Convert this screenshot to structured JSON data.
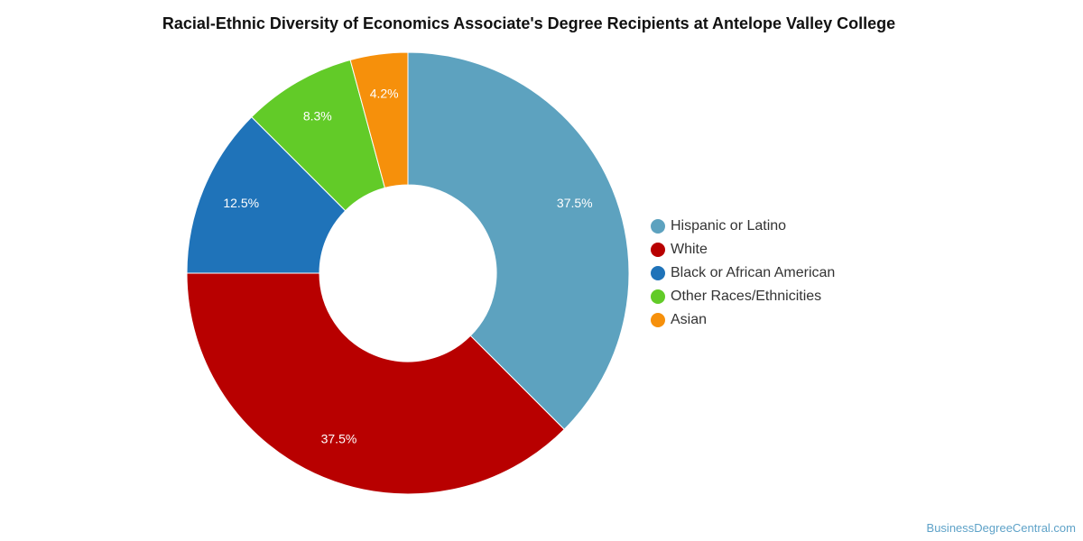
{
  "chart_data": {
    "type": "pie",
    "title": "Racial-Ethnic Diversity of Economics Associate's Degree Recipients at Antelope Valley College",
    "donut": true,
    "legend_position": "right",
    "slices": [
      {
        "name": "Hispanic or Latino",
        "value": 37.5,
        "label": "37.5%",
        "color": "#5da2bf"
      },
      {
        "name": "White",
        "value": 37.5,
        "label": "37.5%",
        "color": "#b80000"
      },
      {
        "name": "Black or African American",
        "value": 12.5,
        "label": "12.5%",
        "color": "#1f73b9"
      },
      {
        "name": "Other Races/Ethnicities",
        "value": 8.3,
        "label": "8.3%",
        "color": "#62cb28"
      },
      {
        "name": "Asian",
        "value": 4.2,
        "label": "4.2%",
        "color": "#f6900b"
      }
    ]
  },
  "watermark": "BusinessDegreeCentral.com"
}
